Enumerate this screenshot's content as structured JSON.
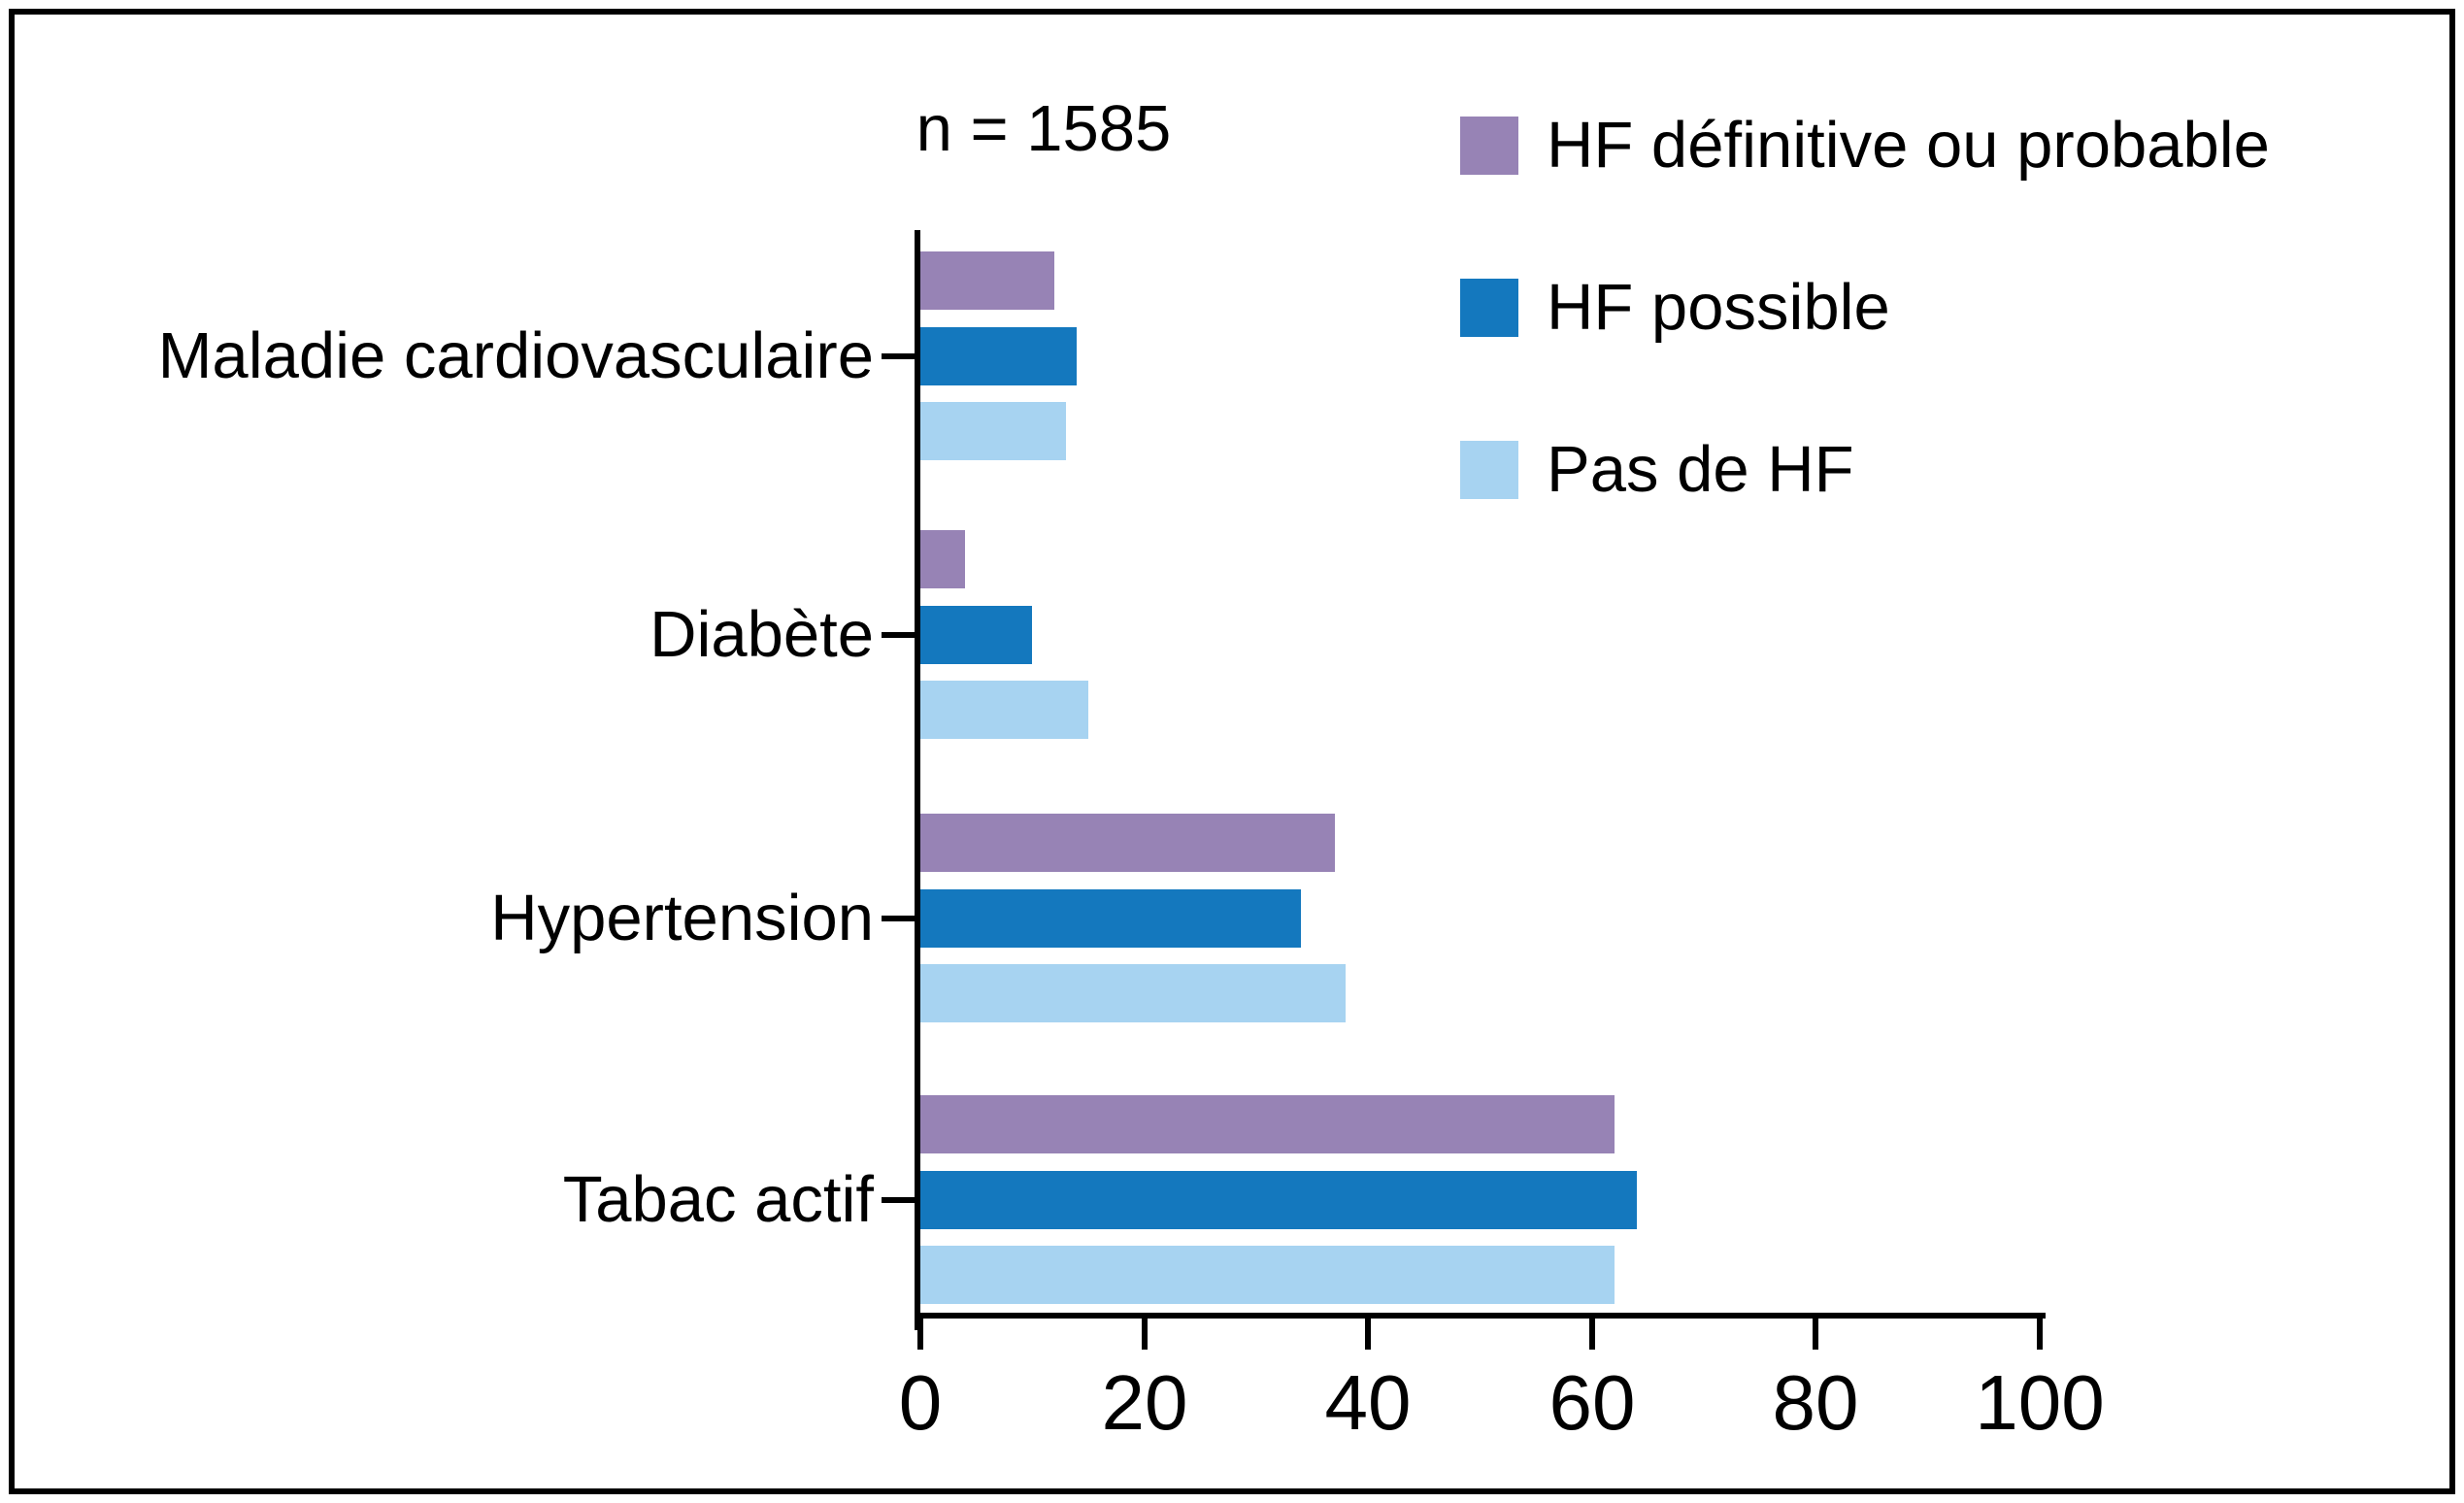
{
  "figure": {
    "background": "#ffffff",
    "border_color": "#000000"
  },
  "chart_data": {
    "type": "bar",
    "orientation": "horizontal",
    "title": "n = 1585",
    "categories": [
      "Maladie cardiovasculaire",
      "Diabète",
      "Hypertension",
      "Tabac actif"
    ],
    "series": [
      {
        "name": "HF définitive ou probable",
        "color": "#9783b5",
        "values": [
          12,
          4,
          37,
          62
        ]
      },
      {
        "name": "HF possible",
        "color": "#1478be",
        "values": [
          14,
          10,
          34,
          64
        ]
      },
      {
        "name": "Pas de HF",
        "color": "#a7d3f1",
        "values": [
          13,
          15,
          38,
          62
        ]
      }
    ],
    "xlim": [
      0,
      100
    ],
    "x_ticks": [
      0,
      20,
      40,
      60,
      80,
      100
    ],
    "grid": false,
    "legend_position": "top-right",
    "axis_color": "#000000",
    "text_color": "#000000"
  }
}
